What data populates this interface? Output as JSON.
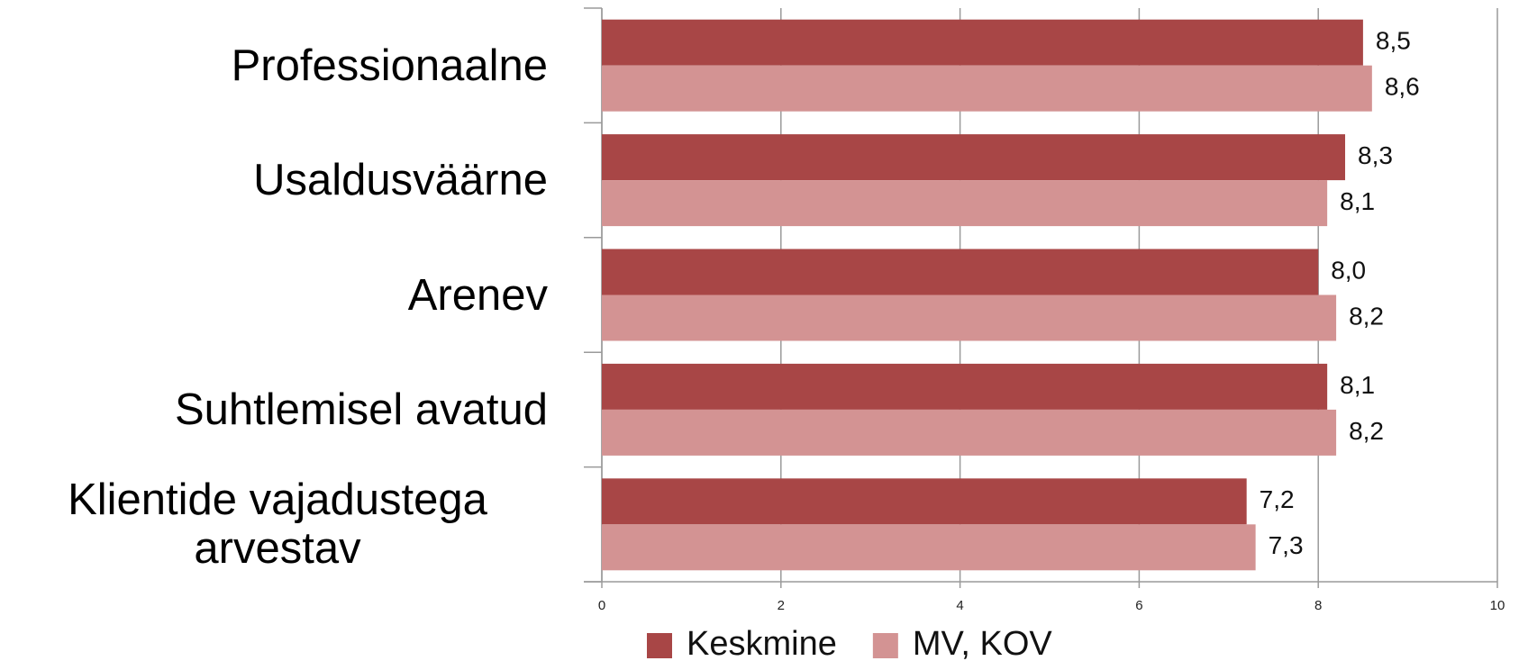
{
  "chart_data": {
    "type": "bar",
    "orientation": "horizontal",
    "categories": [
      "Professionaalne",
      "Usaldusväärne",
      "Arenev",
      "Suhtlemisel avatud",
      "Klientide vajadustega arvestav"
    ],
    "series": [
      {
        "name": "Keskmine",
        "color": "#a84646",
        "values": [
          8.5,
          8.3,
          8.0,
          8.1,
          7.2
        ],
        "value_labels": [
          "8,5",
          "8,3",
          "8,0",
          "8,1",
          "7,2"
        ]
      },
      {
        "name": "MV, KOV",
        "color": "#d39393",
        "values": [
          8.6,
          8.1,
          8.2,
          8.2,
          7.3
        ],
        "value_labels": [
          "8,6",
          "8,1",
          "8,2",
          "8,2",
          "7,3"
        ]
      }
    ],
    "xlim": [
      0,
      10
    ],
    "xticks": [
      0,
      2,
      4,
      6,
      8,
      10
    ],
    "grid": true,
    "legend": "bottom"
  }
}
